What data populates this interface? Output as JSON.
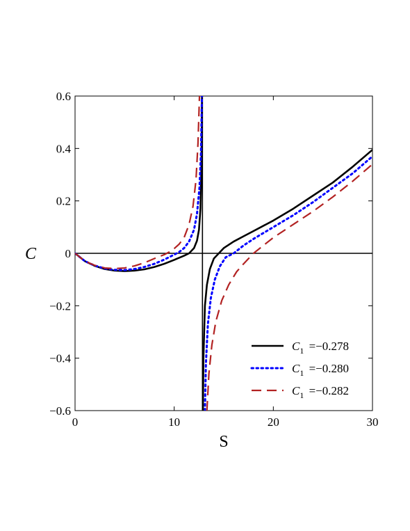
{
  "chart_data": {
    "type": "line",
    "title": "",
    "xlabel": "S",
    "ylabel": "C",
    "xlim": [
      0,
      30
    ],
    "ylim": [
      -0.6,
      0.6
    ],
    "x_ticks": [
      0,
      10,
      20,
      30
    ],
    "x_tick_labels": [
      "0",
      "10",
      "20",
      "30"
    ],
    "y_ticks": [
      0.6,
      0.4,
      0.2,
      0,
      -0.2,
      -0.4,
      -0.6
    ],
    "y_tick_labels": [
      "0.6",
      "0.4",
      "0.2",
      "0",
      "−0.2",
      "−0.4",
      "−0.6"
    ],
    "grid": false,
    "zero_line": true,
    "legend_position": "bottom-right",
    "series": [
      {
        "name_prefix": "C",
        "name_sub": "1",
        "name_value": "=−0.278",
        "color": "#000000",
        "dash": "solid",
        "asymptote": 12.85,
        "branches": [
          {
            "x": [
              0,
              1,
              2,
              3,
              4,
              5,
              6,
              7,
              8,
              9,
              10,
              11,
              11.5,
              12,
              12.3,
              12.5,
              12.65,
              12.75,
              12.8
            ],
            "y": [
              0,
              -0.03,
              -0.048,
              -0.06,
              -0.066,
              -0.068,
              -0.066,
              -0.061,
              -0.052,
              -0.04,
              -0.025,
              -0.009,
              0.0,
              0.02,
              0.048,
              0.09,
              0.17,
              0.33,
              0.6
            ]
          },
          {
            "x": [
              12.9,
              12.95,
              13.1,
              13.3,
              13.6,
              14,
              14.5,
              15,
              16,
              17,
              18,
              20,
              22,
              24,
              26,
              28,
              30
            ],
            "y": [
              -0.6,
              -0.4,
              -0.2,
              -0.12,
              -0.06,
              -0.02,
              0.0,
              0.02,
              0.045,
              0.065,
              0.085,
              0.125,
              0.17,
              0.22,
              0.27,
              0.33,
              0.395
            ]
          }
        ]
      },
      {
        "name_prefix": "C",
        "name_sub": "1",
        "name_value": "=−0.280",
        "color": "#0000ff",
        "dash": "dotted",
        "asymptote": 12.95,
        "branches": [
          {
            "x": [
              0,
              1,
              2,
              3,
              4,
              5,
              6,
              7,
              8,
              9,
              10,
              10.5,
              11,
              11.5,
              12,
              12.3,
              12.55,
              12.7,
              12.8
            ],
            "y": [
              0,
              -0.03,
              -0.047,
              -0.058,
              -0.063,
              -0.064,
              -0.06,
              -0.052,
              -0.04,
              -0.024,
              -0.005,
              0.005,
              0.02,
              0.045,
              0.09,
              0.15,
              0.25,
              0.38,
              0.6
            ]
          },
          {
            "x": [
              13.1,
              13.2,
              13.4,
              13.7,
              14.1,
              14.6,
              15.2,
              16,
              17,
              18,
              20,
              22,
              24,
              26,
              28,
              30
            ],
            "y": [
              -0.6,
              -0.42,
              -0.27,
              -0.17,
              -0.1,
              -0.05,
              -0.015,
              0.0,
              0.03,
              0.055,
              0.1,
              0.145,
              0.195,
              0.25,
              0.305,
              0.37
            ]
          }
        ]
      },
      {
        "name_prefix": "C",
        "name_sub": "1",
        "name_value": "=−0.282",
        "color": "#b22222",
        "dash": "dashed",
        "asymptote": 13.05,
        "branches": [
          {
            "x": [
              0,
              1,
              2,
              3,
              4,
              5,
              6,
              7,
              8,
              9,
              9.5,
              10,
              10.5,
              11,
              11.5,
              11.9,
              12.2,
              12.4,
              12.55
            ],
            "y": [
              0,
              -0.03,
              -0.046,
              -0.056,
              -0.058,
              -0.056,
              -0.048,
              -0.036,
              -0.02,
              -0.005,
              0.005,
              0.018,
              0.035,
              0.06,
              0.11,
              0.18,
              0.28,
              0.42,
              0.6
            ]
          },
          {
            "x": [
              13.3,
              13.5,
              13.8,
              14.2,
              14.8,
              15.5,
              16.3,
              17,
              18,
              20,
              22,
              24,
              26,
              28,
              30
            ],
            "y": [
              -0.6,
              -0.46,
              -0.35,
              -0.26,
              -0.18,
              -0.12,
              -0.07,
              -0.04,
              0.0,
              0.06,
              0.11,
              0.16,
              0.215,
              0.275,
              0.34
            ]
          }
        ]
      }
    ]
  }
}
